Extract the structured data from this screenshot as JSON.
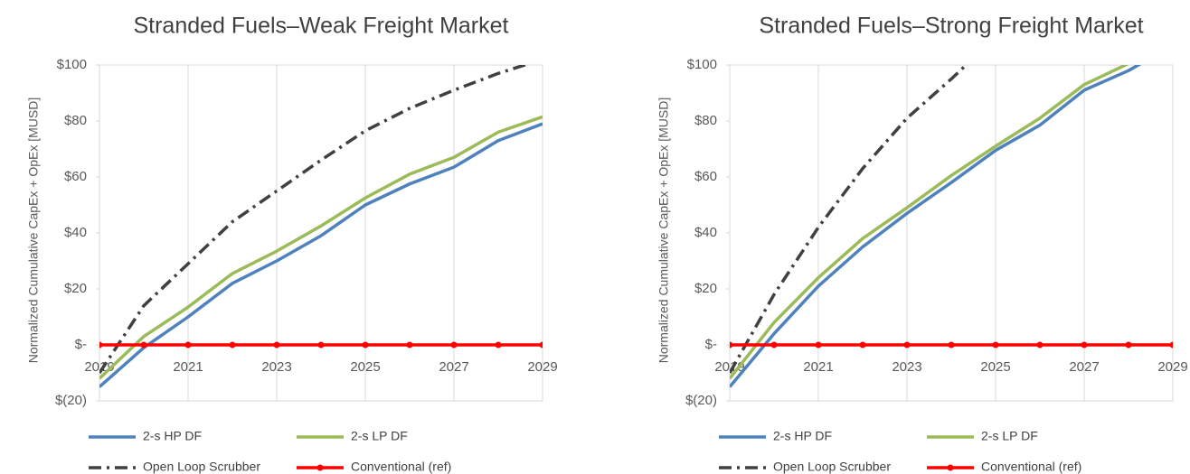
{
  "chart_data": [
    {
      "type": "line",
      "title": "Stranded Fuels–Weak Freight Market",
      "y_label": "Normalized Cumulative CapEx + OpEx [MUSD]",
      "x": [
        2019,
        2020,
        2021,
        2022,
        2023,
        2024,
        2025,
        2026,
        2027,
        2028,
        2029
      ],
      "xlim": [
        2019,
        2029
      ],
      "xticks": [
        2019,
        2021,
        2023,
        2025,
        2027,
        2029
      ],
      "ylim": [
        -20,
        100
      ],
      "yticks": [
        {
          "value": -20,
          "label": "$(20)"
        },
        {
          "value": 0,
          "label": "$-"
        },
        {
          "value": 20,
          "label": "$20"
        },
        {
          "value": 40,
          "label": "$40"
        },
        {
          "value": 60,
          "label": "$60"
        },
        {
          "value": 80,
          "label": "$80"
        },
        {
          "value": 100,
          "label": "$100"
        }
      ],
      "grid": true,
      "series": [
        {
          "name": "2-s HP DF",
          "color": "#4f81bd",
          "line_style": "solid",
          "values": [
            -15,
            -1,
            10,
            22,
            30,
            39,
            50,
            57.5,
            63.5,
            73,
            79
          ]
        },
        {
          "name": "2-s LP DF",
          "color": "#9bbb59",
          "line_style": "solid",
          "values": [
            -12,
            3,
            13.5,
            25.5,
            33.5,
            42.5,
            52.5,
            61,
            67,
            76,
            81.5
          ]
        },
        {
          "name": "Open Loop Scrubber",
          "color": "#404040",
          "line_style": "dashdot",
          "values": [
            -10,
            14,
            29,
            44,
            55,
            66,
            76.5,
            84.5,
            91,
            97,
            102
          ]
        },
        {
          "name": "Conventional (ref)",
          "color": "#ff0000",
          "line_style": "solid",
          "marker": "circle",
          "values": [
            0,
            0,
            0,
            0,
            0,
            0,
            0,
            0,
            0,
            0,
            0
          ]
        }
      ]
    },
    {
      "type": "line",
      "title": "Stranded Fuels–Strong Freight Market",
      "y_label": "Normalized Cumulative CapEx + OpEx [MUSD]",
      "x": [
        2019,
        2020,
        2021,
        2022,
        2023,
        2024,
        2025,
        2026,
        2027,
        2028,
        2029
      ],
      "xlim": [
        2019,
        2029
      ],
      "xticks": [
        2019,
        2021,
        2023,
        2025,
        2027,
        2029
      ],
      "ylim": [
        -20,
        100
      ],
      "yticks": [
        {
          "value": -20,
          "label": "$(20)"
        },
        {
          "value": 0,
          "label": "$-"
        },
        {
          "value": 20,
          "label": "$20"
        },
        {
          "value": 40,
          "label": "$40"
        },
        {
          "value": 60,
          "label": "$60"
        },
        {
          "value": 80,
          "label": "$80"
        },
        {
          "value": 100,
          "label": "$100"
        }
      ],
      "grid": true,
      "series": [
        {
          "name": "2-s HP DF",
          "color": "#4f81bd",
          "line_style": "solid",
          "values": [
            -15,
            4,
            21,
            35,
            47,
            58,
            69.5,
            78.5,
            91,
            98,
            107
          ]
        },
        {
          "name": "2-s LP DF",
          "color": "#9bbb59",
          "line_style": "solid",
          "values": [
            -12,
            8,
            24,
            38,
            49,
            60.5,
            71,
            81,
            93,
            100.5,
            109
          ]
        },
        {
          "name": "Open Loop Scrubber",
          "color": "#404040",
          "line_style": "dashdot",
          "values": [
            -10,
            18,
            42,
            63,
            81,
            95,
            110,
            null,
            null,
            null,
            null
          ]
        },
        {
          "name": "Conventional (ref)",
          "color": "#ff0000",
          "line_style": "solid",
          "marker": "circle",
          "values": [
            0,
            0,
            0,
            0,
            0,
            0,
            0,
            0,
            0,
            0,
            0
          ]
        }
      ]
    }
  ]
}
